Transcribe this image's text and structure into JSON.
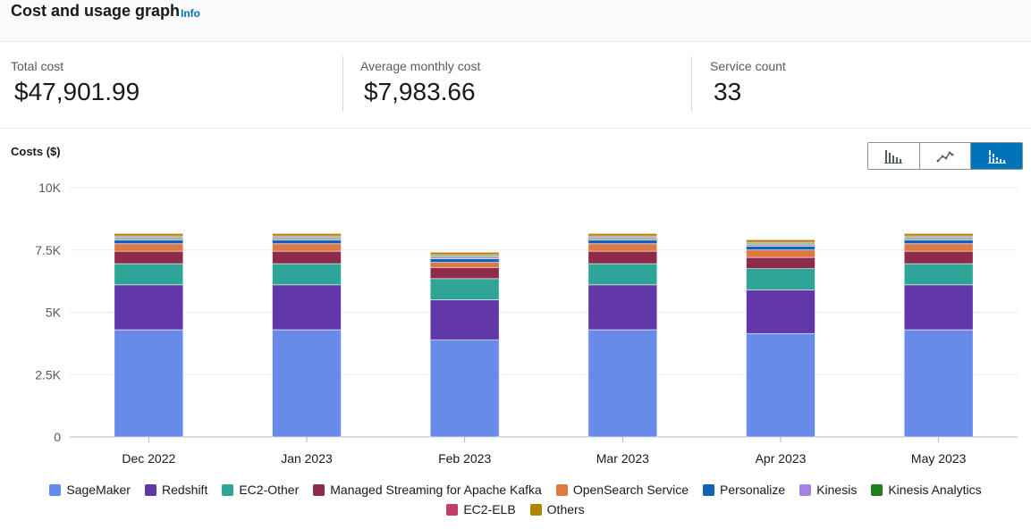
{
  "header": {
    "title": "Cost and usage graph",
    "info_link": "Info"
  },
  "metrics": [
    {
      "label": "Total cost",
      "value": "$47,901.99"
    },
    {
      "label": "Average monthly cost",
      "value": "$7,983.66"
    },
    {
      "label": "Service count",
      "value": "33"
    }
  ],
  "chart_view_toggle": {
    "options": [
      "bar-chart-icon",
      "line-chart-icon",
      "stacked-bar-chart-icon"
    ],
    "selected": "stacked-bar-chart-icon"
  },
  "chart_data": {
    "type": "bar",
    "stacked": true,
    "title": "",
    "ylabel": "Costs ($)",
    "xlabel": "",
    "ylim": [
      0,
      10000
    ],
    "yticks": [
      {
        "value": 0,
        "label": "0"
      },
      {
        "value": 2500,
        "label": "2.5K"
      },
      {
        "value": 5000,
        "label": "5K"
      },
      {
        "value": 7500,
        "label": "7.5K"
      },
      {
        "value": 10000,
        "label": "10K"
      }
    ],
    "grid": true,
    "legend_position": "bottom",
    "categories": [
      "Dec 2022",
      "Jan 2023",
      "Feb 2023",
      "Mar 2023",
      "Apr 2023",
      "May 2023"
    ],
    "series": [
      {
        "name": "SageMaker",
        "color": "#688ae8",
        "values": [
          4300,
          4300,
          3900,
          4300,
          4150,
          4300
        ]
      },
      {
        "name": "Redshift",
        "color": "#6237a7",
        "values": [
          1800,
          1800,
          1600,
          1800,
          1750,
          1800
        ]
      },
      {
        "name": "EC2-Other",
        "color": "#2ea597",
        "values": [
          850,
          850,
          850,
          850,
          850,
          850
        ]
      },
      {
        "name": "Managed Streaming for Apache Kafka",
        "color": "#8d2b4b",
        "values": [
          500,
          500,
          450,
          500,
          450,
          500
        ]
      },
      {
        "name": "OpenSearch Service",
        "color": "#e07941",
        "values": [
          300,
          300,
          200,
          300,
          300,
          300
        ]
      },
      {
        "name": "Personalize",
        "color": "#1063b5",
        "values": [
          150,
          150,
          150,
          150,
          150,
          150
        ]
      },
      {
        "name": "Kinesis",
        "color": "#a783e1",
        "values": [
          70,
          70,
          70,
          70,
          70,
          70
        ]
      },
      {
        "name": "Kinesis Analytics",
        "color": "#1d7f1d",
        "values": [
          50,
          50,
          50,
          50,
          50,
          50
        ]
      },
      {
        "name": "EC2-ELB",
        "color": "#c33d69",
        "values": [
          40,
          40,
          40,
          40,
          40,
          40
        ]
      },
      {
        "name": "Others",
        "color": "#b08400",
        "values": [
          100,
          100,
          100,
          100,
          100,
          100
        ]
      }
    ]
  }
}
